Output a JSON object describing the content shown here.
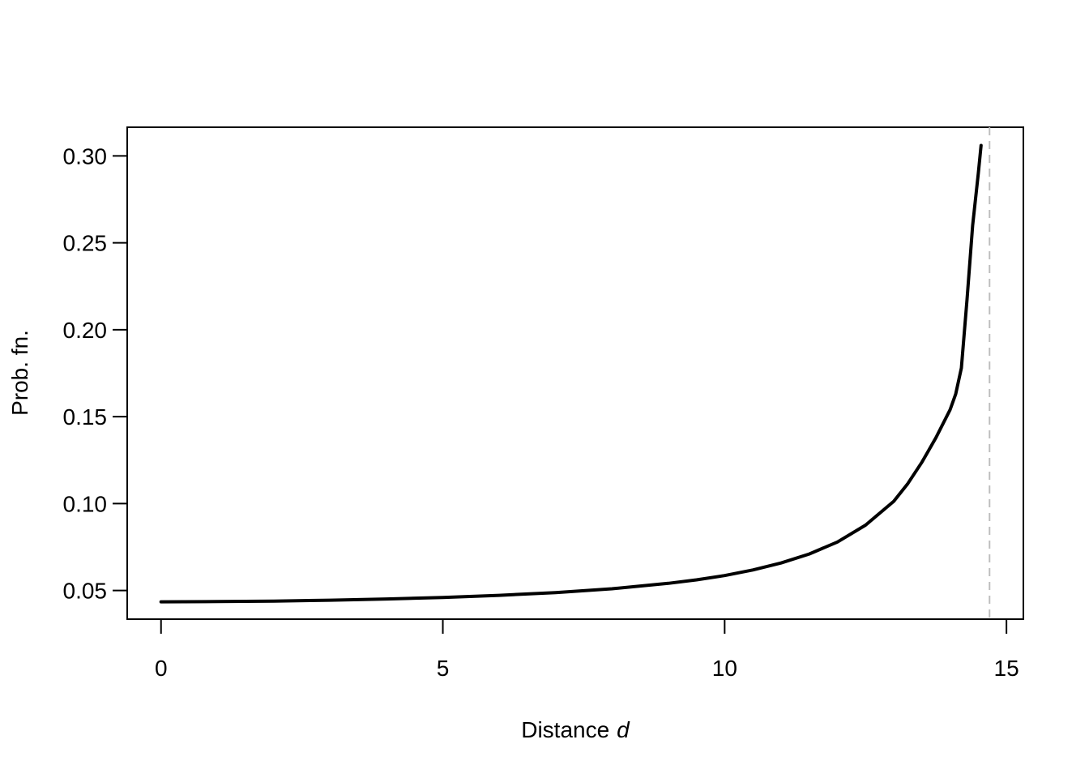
{
  "chart_data": {
    "type": "line",
    "title": "",
    "xlabel": "Distance",
    "xlabel_symbol": "d",
    "ylabel": "Prob. fn.",
    "xlim": [
      -0.6,
      15.3
    ],
    "ylim": [
      0.0335,
      0.3165
    ],
    "xticks": [
      0,
      5,
      10,
      15
    ],
    "xtick_labels": [
      "0",
      "5",
      "10",
      "15"
    ],
    "yticks": [
      0.05,
      0.1,
      0.15,
      0.2,
      0.25,
      0.3
    ],
    "ytick_labels": [
      "0.05",
      "0.10",
      "0.15",
      "0.20",
      "0.25",
      "0.30"
    ],
    "grid": false,
    "legend": "none",
    "series": [
      {
        "x": [
          0,
          1,
          2,
          3,
          4,
          5,
          6,
          7,
          8,
          9,
          9.5,
          10,
          10.5,
          11,
          11.5,
          12,
          12.5,
          13,
          13.25,
          13.5,
          13.75,
          14,
          14.1,
          14.2,
          14.3,
          14.4,
          14.5,
          14.55
        ],
        "y": [
          0.0435,
          0.0436,
          0.0439,
          0.0444,
          0.0451,
          0.046,
          0.0472,
          0.0488,
          0.051,
          0.0541,
          0.0561,
          0.0586,
          0.0618,
          0.0658,
          0.071,
          0.0779,
          0.0876,
          0.1013,
          0.1115,
          0.1238,
          0.138,
          0.154,
          0.163,
          0.178,
          0.217,
          0.26,
          0.29,
          0.306
        ]
      }
    ],
    "reference_line": {
      "orientation": "vertical",
      "x": 14.7,
      "style": "dashed",
      "color": "#bebebe"
    },
    "colors": {
      "line": "#000000",
      "frame": "#000000",
      "reference": "#bebebe"
    }
  }
}
